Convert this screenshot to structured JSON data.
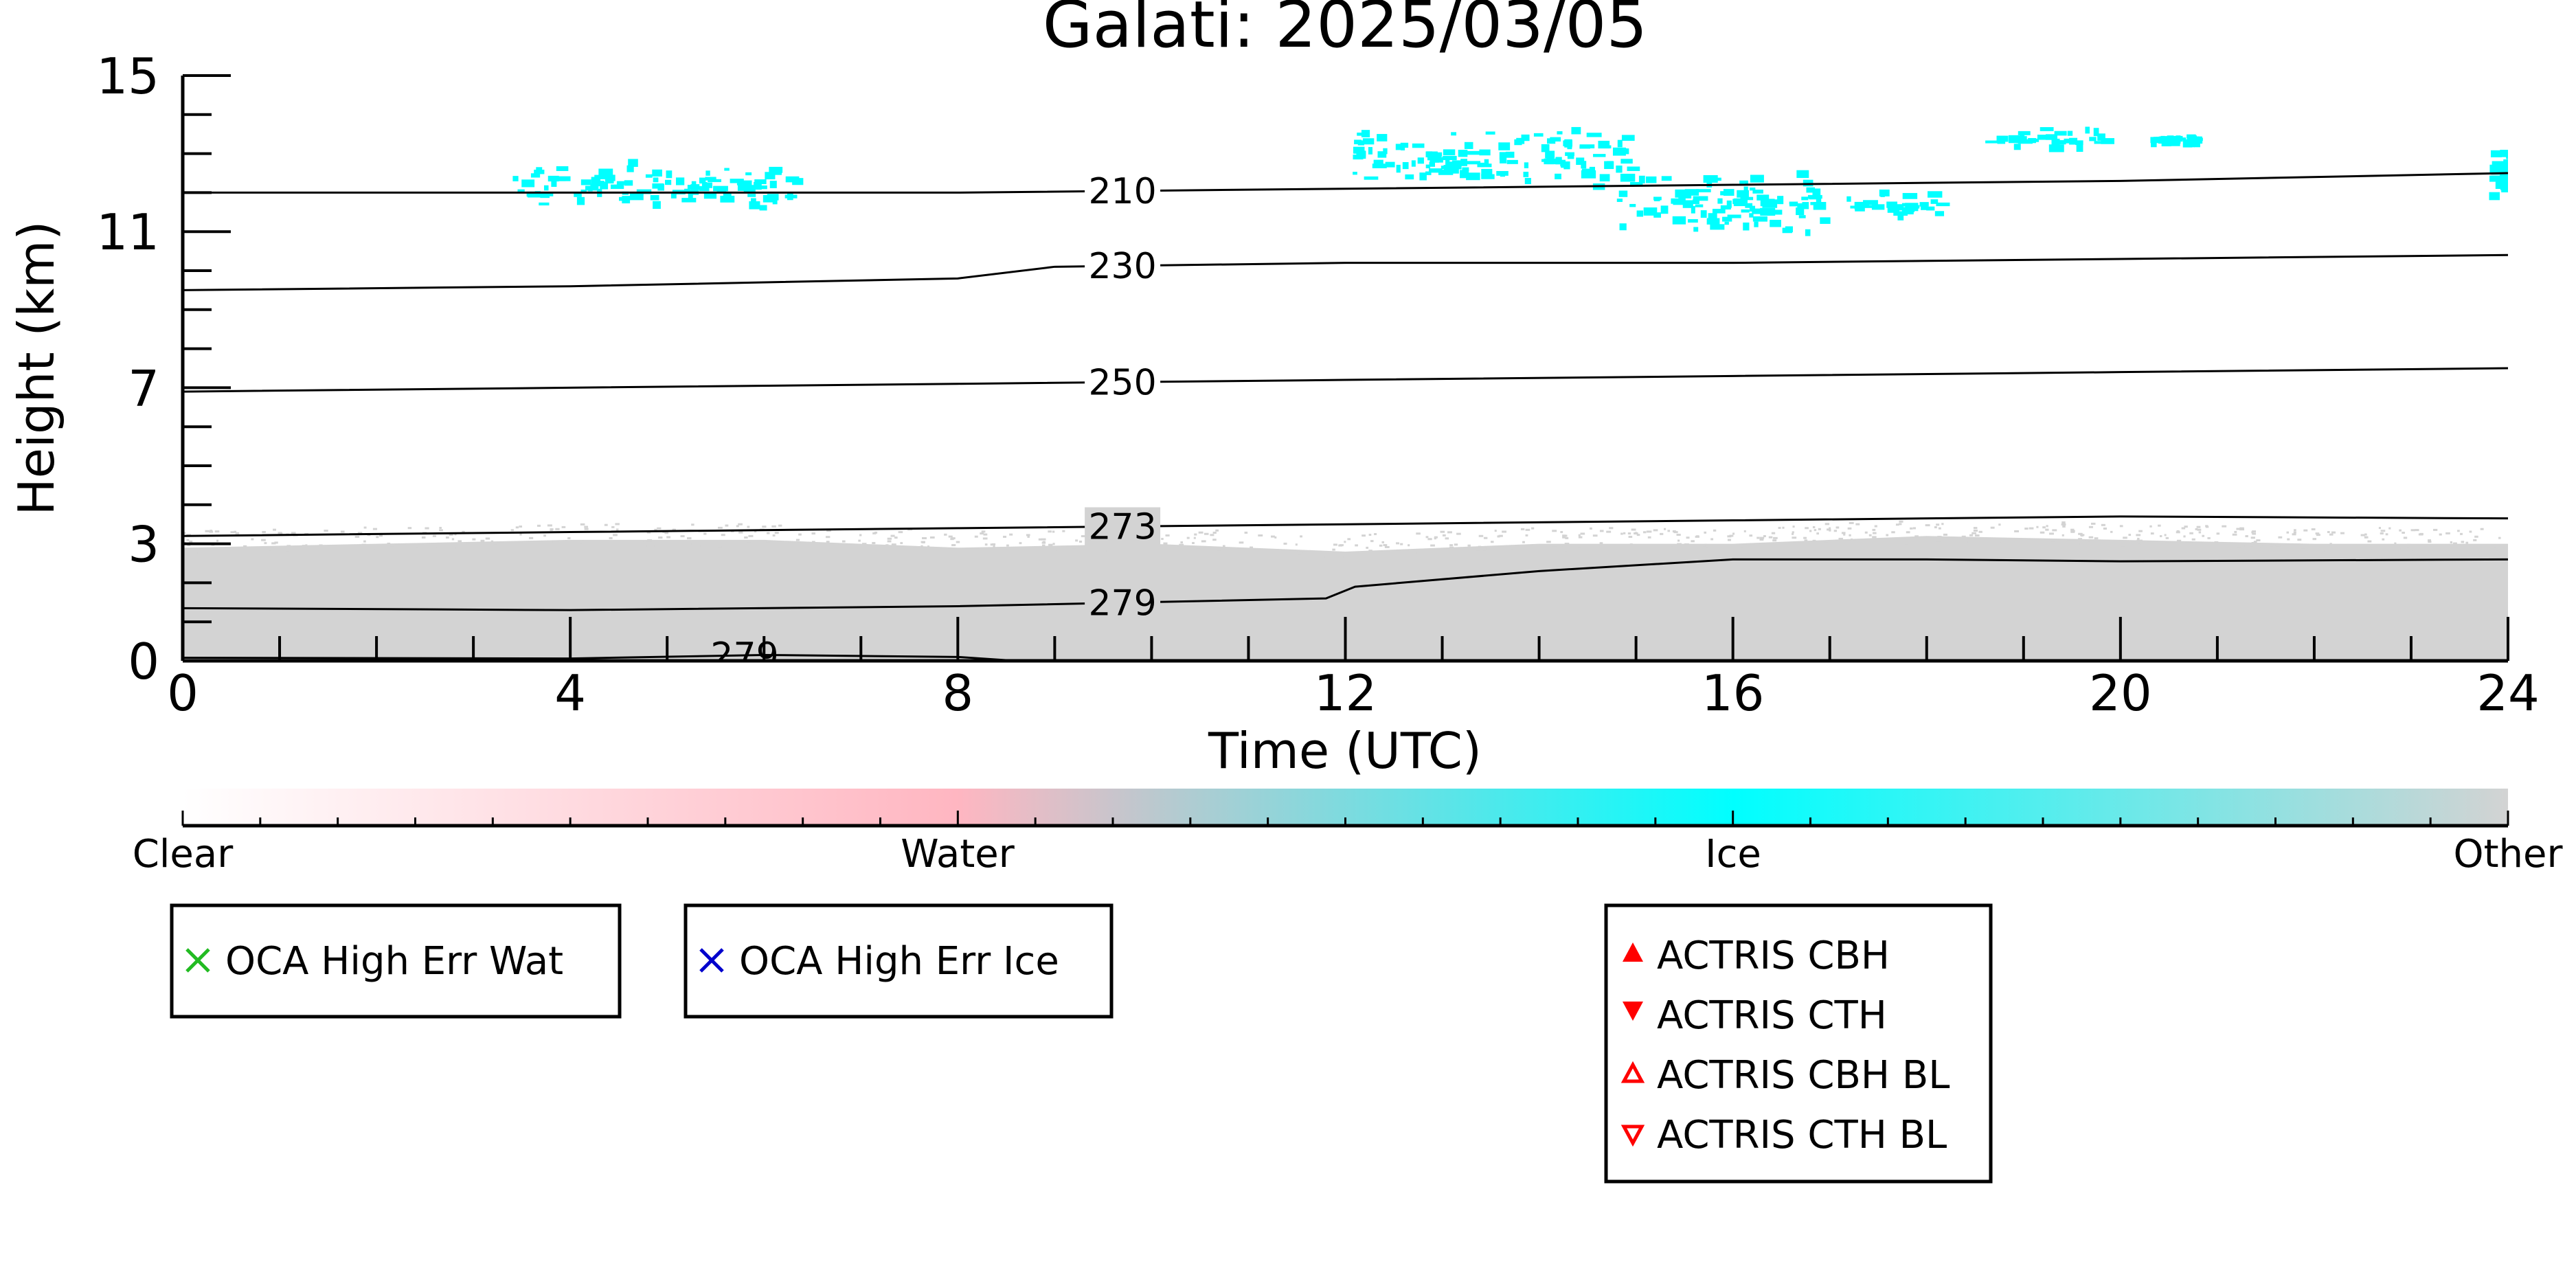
{
  "chart_data": {
    "type": "heatmap",
    "title": "Galati: 2025/03/05",
    "xlabel": "Time (UTC)",
    "ylabel": "Height (km)",
    "xlim": [
      0,
      24
    ],
    "ylim": [
      0,
      15
    ],
    "x_ticks": [
      "0",
      "4",
      "8",
      "12",
      "16",
      "20",
      "24"
    ],
    "y_ticks": [
      "0",
      "3",
      "7",
      "11",
      "15"
    ],
    "colorbar": {
      "labels": [
        "Clear",
        "Water",
        "Ice",
        "Other"
      ],
      "colors": [
        "#ffffff",
        "#ffb6c1",
        "#00ffff",
        "#d3d3d3"
      ]
    },
    "temperature_contours": [
      {
        "label": "210",
        "x": [
          0,
          4,
          8,
          12,
          16,
          20,
          24
        ],
        "y": [
          12.0,
          12.0,
          12.0,
          12.1,
          12.2,
          12.3,
          12.5
        ]
      },
      {
        "label": "230",
        "x": [
          0,
          4,
          8,
          9,
          12,
          16,
          20,
          24
        ],
        "y": [
          9.5,
          9.6,
          9.8,
          10.1,
          10.2,
          10.2,
          10.3,
          10.4
        ]
      },
      {
        "label": "250",
        "x": [
          0,
          4,
          8,
          12,
          16,
          20,
          24
        ],
        "y": [
          6.9,
          7.0,
          7.1,
          7.2,
          7.3,
          7.4,
          7.5
        ]
      },
      {
        "label": "273",
        "x": [
          0,
          4,
          8,
          12,
          16,
          20,
          24
        ],
        "y": [
          3.2,
          3.3,
          3.4,
          3.5,
          3.6,
          3.7,
          3.65
        ]
      },
      {
        "label": "279",
        "x": [
          0,
          4,
          8,
          11.8,
          12.1,
          14,
          16,
          18,
          20,
          24
        ],
        "y": [
          1.35,
          1.3,
          1.4,
          1.6,
          1.9,
          2.3,
          2.6,
          2.6,
          2.55,
          2.6
        ]
      },
      {
        "label": "279",
        "x": [
          0,
          4,
          6,
          8,
          8.6
        ],
        "y": [
          0.08,
          0.06,
          0.15,
          0.1,
          0.0
        ]
      }
    ],
    "ice_clouds": [
      {
        "x": [
          3.4,
          6.3
        ],
        "y": [
          11.7,
          12.8
        ]
      },
      {
        "x": [
          12.0,
          15.0
        ],
        "y": [
          12.3,
          13.6
        ]
      },
      {
        "x": [
          14.8,
          16.9
        ],
        "y": [
          11.1,
          12.5
        ]
      },
      {
        "x": [
          17.1,
          18.1
        ],
        "y": [
          11.4,
          12.1
        ]
      },
      {
        "x": [
          18.6,
          19.8
        ],
        "y": [
          13.2,
          13.7
        ]
      },
      {
        "x": [
          20.3,
          20.8
        ],
        "y": [
          13.3,
          13.5
        ]
      },
      {
        "x": [
          23.8,
          24.0
        ],
        "y": [
          12.1,
          13.1
        ]
      }
    ],
    "other_layer": {
      "x": [
        0,
        24
      ],
      "top_km": [
        2.9,
        3.0,
        3.1,
        3.1,
        2.9,
        3.0,
        2.8,
        3.0,
        3.0,
        3.2,
        3.1,
        3.0,
        3.0
      ]
    },
    "legends": [
      {
        "entries": [
          {
            "label": "OCA High Err Wat",
            "marker": "x",
            "color": "#22bb22"
          }
        ]
      },
      {
        "entries": [
          {
            "label": "OCA High Err Ice",
            "marker": "x",
            "color": "#0000cc"
          }
        ]
      },
      {
        "entries": [
          {
            "label": "ACTRIS CBH",
            "marker": "triangle-up-filled",
            "color": "#ff0000"
          },
          {
            "label": "ACTRIS CTH",
            "marker": "triangle-down-filled",
            "color": "#ff0000"
          },
          {
            "label": "ACTRIS CBH BL",
            "marker": "triangle-up-open",
            "color": "#ff0000"
          },
          {
            "label": "ACTRIS CTH BL",
            "marker": "triangle-down-open",
            "color": "#ff0000"
          }
        ]
      }
    ]
  }
}
